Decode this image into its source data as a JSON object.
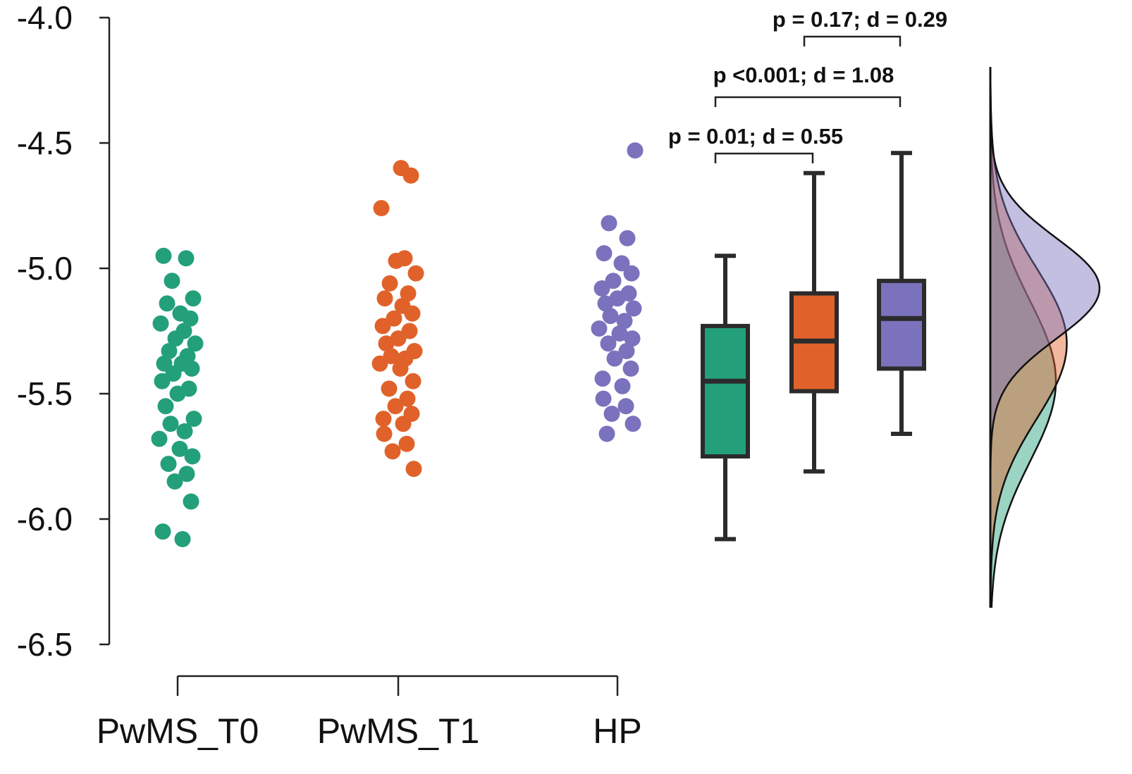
{
  "chart_data": {
    "type": "raincloud",
    "ylim": [
      -6.5,
      -4.0
    ],
    "yticks": [
      "-4.0",
      "-4.5",
      "-5.0",
      "-5.5",
      "-6.0",
      "-6.5"
    ],
    "categories": [
      "PwMS_T0",
      "PwMS_T1",
      "HP"
    ],
    "colors": {
      "PwMS_T0": "#23a07a",
      "PwMS_T1": "#e0622a",
      "HP": "#7a72bd"
    },
    "series": [
      {
        "name": "PwMS_T0",
        "points": [
          -4.95,
          -4.96,
          -5.05,
          -5.12,
          -5.14,
          -5.18,
          -5.2,
          -5.22,
          -5.25,
          -5.28,
          -5.3,
          -5.33,
          -5.35,
          -5.38,
          -5.38,
          -5.4,
          -5.42,
          -5.45,
          -5.48,
          -5.5,
          -5.55,
          -5.6,
          -5.62,
          -5.65,
          -5.68,
          -5.72,
          -5.75,
          -5.78,
          -5.82,
          -5.85,
          -5.93,
          -6.05,
          -6.08
        ],
        "box": {
          "whisker_low": -6.08,
          "q1": -5.75,
          "median": -5.45,
          "q3": -5.23,
          "whisker_high": -4.95
        }
      },
      {
        "name": "PwMS_T1",
        "points": [
          -4.6,
          -4.63,
          -4.76,
          -4.96,
          -4.97,
          -5.02,
          -5.06,
          -5.1,
          -5.12,
          -5.15,
          -5.18,
          -5.2,
          -5.23,
          -5.25,
          -5.28,
          -5.3,
          -5.33,
          -5.35,
          -5.36,
          -5.38,
          -5.4,
          -5.45,
          -5.48,
          -5.52,
          -5.55,
          -5.58,
          -5.6,
          -5.62,
          -5.66,
          -5.7,
          -5.73,
          -5.8
        ],
        "box": {
          "whisker_low": -5.81,
          "q1": -5.49,
          "median": -5.29,
          "q3": -5.1,
          "whisker_high": -4.62
        }
      },
      {
        "name": "HP",
        "points": [
          -4.53,
          -4.82,
          -4.88,
          -4.94,
          -4.98,
          -5.02,
          -5.05,
          -5.08,
          -5.1,
          -5.12,
          -5.14,
          -5.16,
          -5.19,
          -5.21,
          -5.24,
          -5.26,
          -5.28,
          -5.3,
          -5.33,
          -5.36,
          -5.4,
          -5.44,
          -5.47,
          -5.52,
          -5.55,
          -5.58,
          -5.62,
          -5.66
        ],
        "box": {
          "whisker_low": -5.66,
          "q1": -5.4,
          "median": -5.2,
          "q3": -5.05,
          "whisker_high": -4.54
        }
      }
    ],
    "annotations": [
      {
        "text": "p = 0.17; d = 0.29",
        "from": "PwMS_T1",
        "to": "HP"
      },
      {
        "text": "p <0.001; d = 1.08",
        "from": "PwMS_T0",
        "to": "HP"
      },
      {
        "text": "p = 0.01; d = 0.55",
        "from": "PwMS_T0",
        "to": "PwMS_T1"
      }
    ],
    "density": {
      "y_range": [
        -6.35,
        -4.2
      ],
      "series": [
        {
          "name": "PwMS_T0",
          "peak": -5.45,
          "spread": 0.32,
          "max_value": 0.24
        },
        {
          "name": "PwMS_T1",
          "peak": -5.3,
          "spread": 0.3,
          "max_value": 0.28
        },
        {
          "name": "HP",
          "peak": -5.08,
          "spread": 0.2,
          "max_value": 0.4
        }
      ]
    }
  }
}
